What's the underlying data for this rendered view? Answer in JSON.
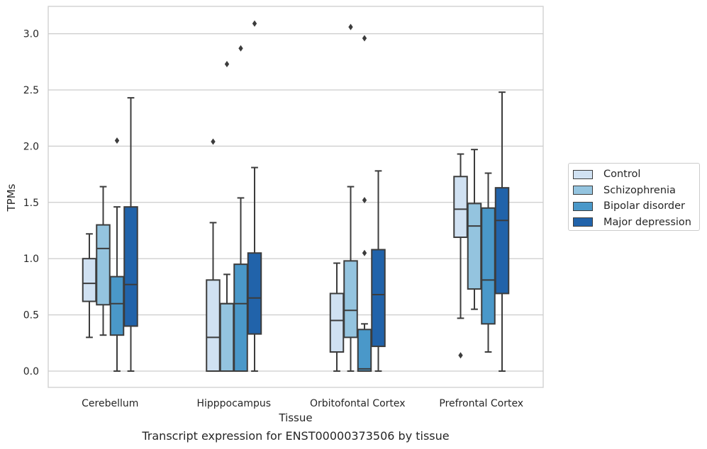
{
  "chart_data": {
    "type": "box",
    "title": "",
    "xlabel": "Tissue",
    "ylabel": "TPMs",
    "ylim": [
      -0.15,
      3.25
    ],
    "yticks": [
      "0.0",
      "0.5",
      "1.0",
      "1.5",
      "2.0",
      "2.5",
      "3.0"
    ],
    "grid": true,
    "legend_position": "right",
    "categories": [
      "Cerebellum",
      "Hipppocampus",
      "Orbitofontal Cortex",
      "Prefrontal Cortex"
    ],
    "series": [
      {
        "name": "Control",
        "color": "#d0e1f2",
        "boxes": [
          {
            "whislo": 0.3,
            "q1": 0.62,
            "med": 0.78,
            "q3": 1.0,
            "whishi": 1.22,
            "fliers": []
          },
          {
            "whislo": 0.0,
            "q1": 0.0,
            "med": 0.3,
            "q3": 0.81,
            "whishi": 1.32,
            "fliers": [
              2.04
            ]
          },
          {
            "whislo": 0.0,
            "q1": 0.17,
            "med": 0.45,
            "q3": 0.69,
            "whishi": 0.96,
            "fliers": []
          },
          {
            "whislo": 0.47,
            "q1": 1.19,
            "med": 1.44,
            "q3": 1.73,
            "whishi": 1.93,
            "fliers": [
              0.14
            ]
          }
        ]
      },
      {
        "name": "Schizophrenia",
        "color": "#94c4df",
        "boxes": [
          {
            "whislo": 0.32,
            "q1": 0.59,
            "med": 1.09,
            "q3": 1.3,
            "whishi": 1.64,
            "fliers": []
          },
          {
            "whislo": 0.0,
            "q1": 0.0,
            "med": 0.6,
            "q3": 0.6,
            "whishi": 0.86,
            "fliers": [
              2.73
            ]
          },
          {
            "whislo": 0.0,
            "q1": 0.3,
            "med": 0.54,
            "q3": 0.98,
            "whishi": 1.64,
            "fliers": [
              3.06
            ]
          },
          {
            "whislo": 0.55,
            "q1": 0.73,
            "med": 1.29,
            "q3": 1.49,
            "whishi": 1.97,
            "fliers": []
          }
        ]
      },
      {
        "name": "Bipolar disorder",
        "color": "#4a98c9",
        "boxes": [
          {
            "whislo": 0.0,
            "q1": 0.32,
            "med": 0.6,
            "q3": 0.84,
            "whishi": 1.46,
            "fliers": [
              2.05
            ]
          },
          {
            "whislo": 0.0,
            "q1": 0.0,
            "med": 0.6,
            "q3": 0.95,
            "whishi": 1.54,
            "fliers": [
              2.87
            ]
          },
          {
            "whislo": 0.0,
            "q1": 0.0,
            "med": 0.02,
            "q3": 0.37,
            "whishi": 0.42,
            "fliers": [
              1.05,
              1.52,
              2.96
            ]
          },
          {
            "whislo": 0.17,
            "q1": 0.42,
            "med": 0.81,
            "q3": 1.45,
            "whishi": 1.76,
            "fliers": []
          }
        ]
      },
      {
        "name": "Major depression",
        "color": "#2163aa",
        "boxes": [
          {
            "whislo": 0.0,
            "q1": 0.4,
            "med": 0.77,
            "q3": 1.46,
            "whishi": 2.43,
            "fliers": []
          },
          {
            "whislo": 0.0,
            "q1": 0.33,
            "med": 0.65,
            "q3": 1.05,
            "whishi": 1.81,
            "fliers": [
              3.09
            ]
          },
          {
            "whislo": 0.0,
            "q1": 0.22,
            "med": 0.68,
            "q3": 1.08,
            "whishi": 1.78,
            "fliers": []
          },
          {
            "whislo": 0.0,
            "q1": 0.69,
            "med": 1.34,
            "q3": 1.63,
            "whishi": 2.48,
            "fliers": []
          }
        ]
      }
    ]
  },
  "caption": "Transcript expression for ENST00000373506 by tissue"
}
